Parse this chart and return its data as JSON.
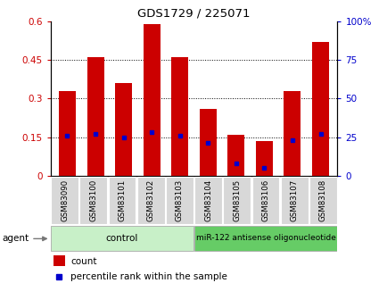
{
  "title": "GDS1729 / 225071",
  "samples": [
    "GSM83090",
    "GSM83100",
    "GSM83101",
    "GSM83102",
    "GSM83103",
    "GSM83104",
    "GSM83105",
    "GSM83106",
    "GSM83107",
    "GSM83108"
  ],
  "count_values": [
    0.33,
    0.46,
    0.36,
    0.59,
    0.46,
    0.26,
    0.16,
    0.135,
    0.33,
    0.52
  ],
  "percentile_values": [
    26,
    27,
    25,
    28,
    26,
    21,
    8,
    5,
    23,
    27
  ],
  "bar_color": "#cc0000",
  "marker_color": "#0000cc",
  "left_ylim": [
    0,
    0.6
  ],
  "right_ylim": [
    0,
    100
  ],
  "left_yticks": [
    0,
    0.15,
    0.3,
    0.45,
    0.6
  ],
  "left_yticklabels": [
    "0",
    "0.15",
    "0.3",
    "0.45",
    "0.6"
  ],
  "right_yticks": [
    0,
    25,
    50,
    75,
    100
  ],
  "right_yticklabels": [
    "0",
    "25",
    "50",
    "75",
    "100%"
  ],
  "n_control": 5,
  "n_treatment": 5,
  "control_label": "control",
  "treatment_label": "miR-122 antisense oligonucleotide",
  "control_color": "#c8f0c8",
  "treatment_color": "#66cc66",
  "agent_label": "agent",
  "legend_count": "count",
  "legend_percentile": "percentile rank within the sample",
  "bar_width": 0.6,
  "figsize": [
    4.35,
    3.45
  ],
  "dpi": 100,
  "bg_color": "#ffffff",
  "tick_label_bg": "#d8d8d8",
  "grid_color": "#000000",
  "grid_linestyle": ":",
  "grid_linewidth": 0.7
}
